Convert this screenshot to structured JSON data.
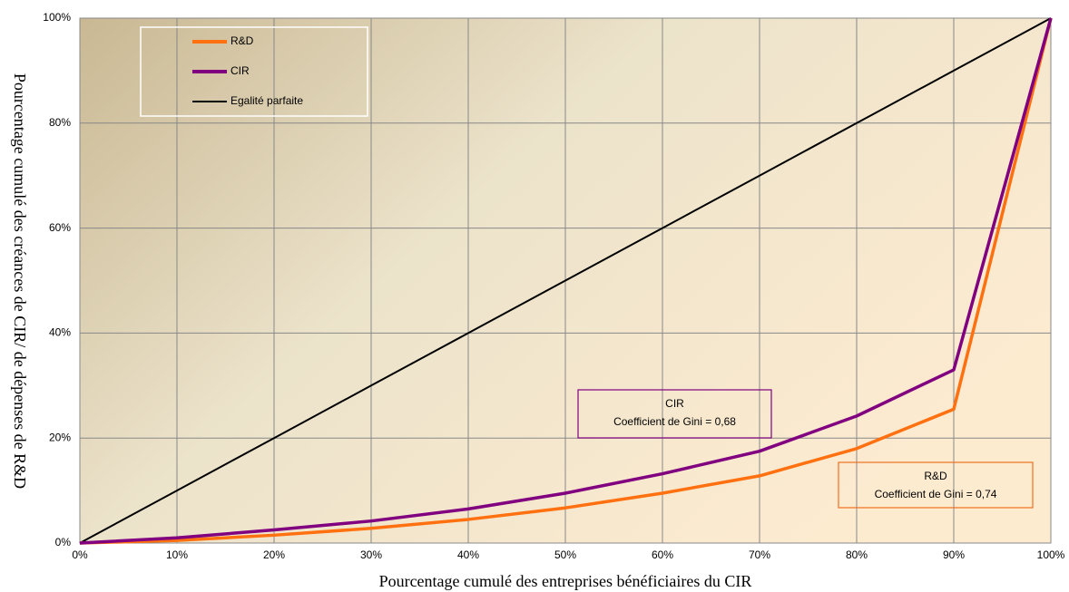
{
  "chart_data": {
    "type": "line",
    "x": [
      0,
      10,
      20,
      30,
      40,
      50,
      60,
      70,
      80,
      90,
      100
    ],
    "series": [
      {
        "name": "R&D",
        "color": "#ff7010",
        "values": [
          0,
          0.5,
          1.5,
          2.8,
          4.5,
          6.7,
          9.5,
          12.8,
          18,
          25.5,
          100
        ]
      },
      {
        "name": "CIR",
        "color": "#800080",
        "values": [
          0,
          1,
          2.5,
          4.2,
          6.5,
          9.5,
          13.2,
          17.5,
          24.2,
          33,
          100
        ]
      },
      {
        "name": "Egalité parfaite",
        "color": "#000000",
        "values": [
          0,
          10,
          20,
          30,
          40,
          50,
          60,
          70,
          80,
          90,
          100
        ]
      }
    ],
    "xlim": [
      0,
      100
    ],
    "ylim": [
      0,
      100
    ],
    "xticks": [
      {
        "value": 0,
        "label": "0%"
      },
      {
        "value": 10,
        "label": "10%"
      },
      {
        "value": 20,
        "label": "20%"
      },
      {
        "value": 30,
        "label": "30%"
      },
      {
        "value": 40,
        "label": "40%"
      },
      {
        "value": 50,
        "label": "50%"
      },
      {
        "value": 60,
        "label": "60%"
      },
      {
        "value": 70,
        "label": "70%"
      },
      {
        "value": 80,
        "label": "80%"
      },
      {
        "value": 90,
        "label": "90%"
      },
      {
        "value": 100,
        "label": "100%"
      }
    ],
    "yticks": [
      {
        "value": 0,
        "label": "0%"
      },
      {
        "value": 20,
        "label": "20%"
      },
      {
        "value": 40,
        "label": "40%"
      },
      {
        "value": 60,
        "label": "60%"
      },
      {
        "value": 80,
        "label": "80%"
      },
      {
        "value": 100,
        "label": "100%"
      }
    ],
    "xlabel": "Pourcentage cumulé des entreprises bénéficiaires du CIR",
    "ylabel": "Pourcentage cumulé des créances de CIR/ de dépenses de R&D",
    "grid": true,
    "annotations": [
      {
        "lines": [
          "CIR",
          "Coefficient de Gini = 0,68"
        ],
        "color": "#800080"
      },
      {
        "lines": [
          "R&D",
          "Coefficient de Gini = 0,74"
        ],
        "color": "#f07020"
      }
    ]
  }
}
